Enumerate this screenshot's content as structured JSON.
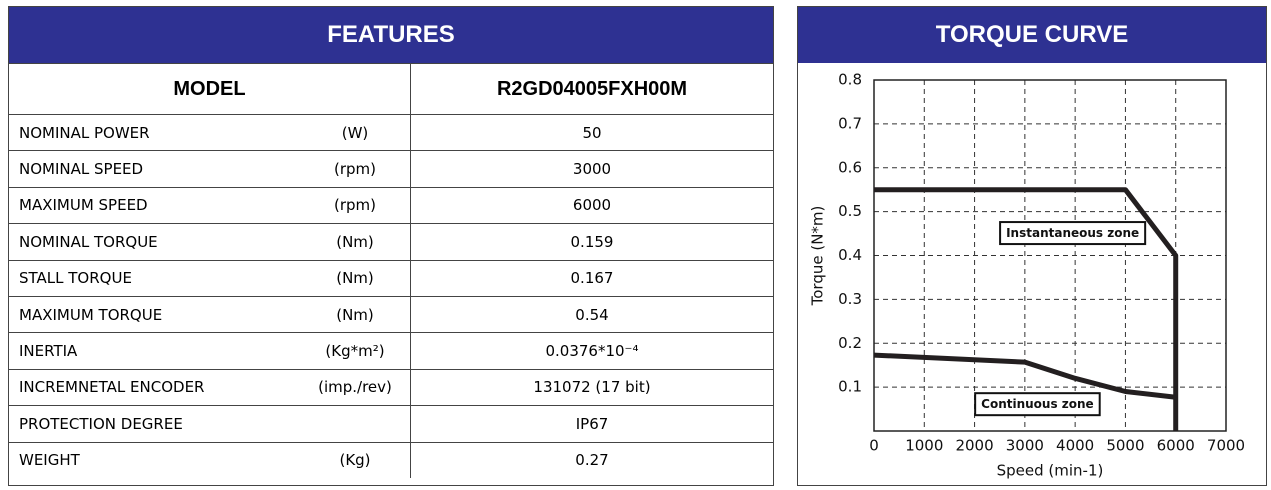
{
  "features": {
    "title": "FEATURES",
    "model_label": "MODEL",
    "model_value": "R2GD04005FXH00M",
    "rows": [
      {
        "label": "NOMINAL POWER",
        "unit": "(W)",
        "value": "50"
      },
      {
        "label": "NOMINAL SPEED",
        "unit": "(rpm)",
        "value": "3000"
      },
      {
        "label": "MAXIMUM SPEED",
        "unit": "(rpm)",
        "value": "6000"
      },
      {
        "label": "NOMINAL TORQUE",
        "unit": "(Nm)",
        "value": "0.159"
      },
      {
        "label": "STALL TORQUE",
        "unit": "(Nm)",
        "value": "0.167"
      },
      {
        "label": "MAXIMUM TORQUE",
        "unit": "(Nm)",
        "value": "0.54"
      },
      {
        "label": "INERTIA",
        "unit": "(Kg*m²)",
        "value": "0.0376*10⁻⁴"
      },
      {
        "label": "INCREMNETAL  ENCODER",
        "unit": "(imp./rev)",
        "value": "131072 (17 bit)"
      },
      {
        "label": "PROTECTION DEGREE",
        "value": "IP67"
      },
      {
        "label": "WEIGHT",
        "unit": "(Kg)",
        "value": "0.27"
      }
    ]
  },
  "chart_data": {
    "type": "line",
    "title": "TORQUE CURVE",
    "x_label": "Speed (min-1)",
    "y_label": "Torque (N*m)",
    "xlim": [
      0,
      7000
    ],
    "xticks": [
      0,
      1000,
      2000,
      3000,
      4000,
      5000,
      6000,
      7000
    ],
    "ylim": [
      0,
      0.8
    ],
    "yticks": [
      0.1,
      0.2,
      0.3,
      0.4,
      0.5,
      0.6,
      0.7,
      0.8
    ],
    "grid": true,
    "series": [
      {
        "color": "#231f20",
        "x": [
          0,
          5000,
          6000,
          6000
        ],
        "values": [
          0.55,
          0.55,
          0.4,
          0
        ]
      },
      {
        "color": "#231f20",
        "x": [
          0,
          3000,
          4000,
          5000,
          6000
        ],
        "values": [
          0.173,
          0.157,
          0.12,
          0.09,
          0.077
        ]
      }
    ],
    "annotations": [
      {
        "text": "Instantaneous zone",
        "x": 3950,
        "y": 0.45
      },
      {
        "text": "Continuous zone",
        "x": 3250,
        "y": 0.06
      }
    ]
  }
}
